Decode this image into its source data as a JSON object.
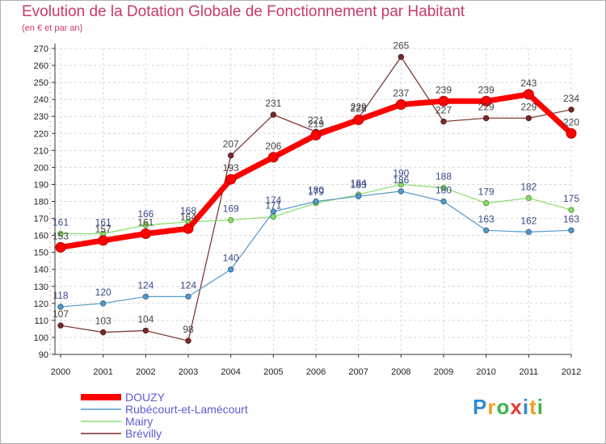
{
  "title": "Evolution de la Dotation Globale de Fonctionnement par Habitant",
  "subtitle": "(en € et par an)",
  "logo": {
    "text": "Proxiti",
    "colors": [
      "#2e8bd8",
      "#f0a020",
      "#39b54a",
      "#e03c31",
      "#2e8bd8",
      "#f0a020",
      "#39b54a"
    ]
  },
  "chart_data": {
    "type": "line",
    "x": [
      "2000",
      "2001",
      "2002",
      "2003",
      "2004",
      "2005",
      "2006",
      "2007",
      "2008",
      "2009",
      "2010",
      "2011",
      "2012"
    ],
    "ylim": [
      90,
      270
    ],
    "yticks": [
      90,
      100,
      110,
      120,
      130,
      140,
      150,
      160,
      170,
      180,
      190,
      200,
      210,
      220,
      230,
      240,
      250,
      260,
      270
    ],
    "grid": true,
    "legend_position": "bottom-left",
    "series": [
      {
        "name": "Brévilly",
        "color": "#7b2a2a",
        "values": [
          107,
          103,
          104,
          98,
          207,
          231,
          221,
          229,
          265,
          227,
          229,
          229,
          234
        ]
      },
      {
        "name": "Mairy",
        "color": "#88dd66",
        "values": [
          161,
          161,
          166,
          168,
          169,
          171,
          179,
          184,
          190,
          188,
          179,
          182,
          175
        ]
      },
      {
        "name": "Rubécourt-et-Lamécourt",
        "color": "#5599cc",
        "values": [
          118,
          120,
          124,
          124,
          140,
          174,
          180,
          183,
          186,
          180,
          163,
          162,
          163
        ]
      },
      {
        "name": "DOUZY",
        "color": "#ff0000",
        "values": [
          153,
          157,
          161,
          164,
          193,
          206,
          219,
          228,
          237,
          239,
          239,
          243,
          220
        ]
      }
    ],
    "legend_order": [
      "DOUZY",
      "Rubécourt-et-Lamécourt",
      "Mairy",
      "Brévilly"
    ]
  }
}
